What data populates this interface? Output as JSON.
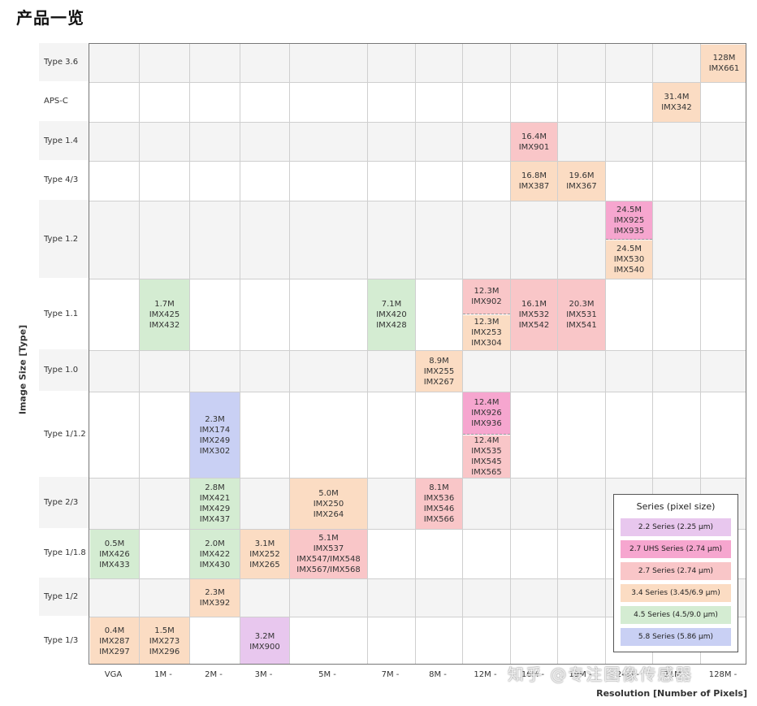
{
  "page_title": "产品一览",
  "y_axis_title": "Image Size [Type]",
  "x_axis_title": "Resolution [Number of Pixels]",
  "watermark": "知乎 @专注图像传感器",
  "colors": {
    "2.2": "#e8c7ee",
    "2.7UHS": "#f6a6cf",
    "2.7": "#f9c6c8",
    "3.4": "#fbdcc3",
    "4.5": "#d4ecd2",
    "5.8": "#c9d0f4",
    "band": "#f4f4f4",
    "grid": "#cfcfcf"
  },
  "rows": [
    {
      "label": "Type 3.6"
    },
    {
      "label": "APS-C"
    },
    {
      "label": "Type 1.4"
    },
    {
      "label": "Type 4/3"
    },
    {
      "label": "Type 1.2"
    },
    {
      "label": "Type 1.1"
    },
    {
      "label": "Type 1.0"
    },
    {
      "label": "Type 1/1.2"
    },
    {
      "label": "Type 2/3"
    },
    {
      "label": "Type 1/1.8"
    },
    {
      "label": "Type 1/2"
    },
    {
      "label": "Type 1/3"
    }
  ],
  "columns": [
    "VGA",
    "1M -",
    "2M -",
    "3M -",
    "5M -",
    "7M -",
    "8M -",
    "12M -",
    "16M -",
    "19M -",
    "24M -",
    "31M -",
    "128M -"
  ],
  "cells": [
    {
      "row": 0,
      "col": 12,
      "series": "3.4",
      "lines": [
        "128M",
        "IMX661"
      ]
    },
    {
      "row": 1,
      "col": 11,
      "series": "3.4",
      "lines": [
        "31.4M",
        "IMX342"
      ]
    },
    {
      "row": 2,
      "col": 8,
      "series": "2.7",
      "lines": [
        "16.4M",
        "IMX901"
      ]
    },
    {
      "row": 3,
      "col": 8,
      "series": "3.4",
      "lines": [
        "16.8M",
        "IMX387"
      ]
    },
    {
      "row": 3,
      "col": 9,
      "series": "3.4",
      "lines": [
        "19.6M",
        "IMX367"
      ]
    },
    {
      "row": 4,
      "col": 10,
      "series": "2.7UHS",
      "part": "top",
      "lines": [
        "24.5M",
        "IMX925",
        "IMX935"
      ]
    },
    {
      "row": 4,
      "col": 10,
      "series": "3.4",
      "part": "bottom",
      "lines": [
        "24.5M",
        "IMX530",
        "IMX540"
      ]
    },
    {
      "row": 5,
      "col": 1,
      "series": "4.5",
      "lines": [
        "1.7M",
        "IMX425",
        "IMX432"
      ]
    },
    {
      "row": 5,
      "col": 5,
      "series": "4.5",
      "lines": [
        "7.1M",
        "IMX420",
        "IMX428"
      ]
    },
    {
      "row": 5,
      "col": 7,
      "series": "2.7",
      "part": "top",
      "lines": [
        "12.3M",
        "IMX902"
      ]
    },
    {
      "row": 5,
      "col": 7,
      "series": "3.4",
      "part": "bottom",
      "lines": [
        "12.3M",
        "IMX253",
        "IMX304"
      ]
    },
    {
      "row": 5,
      "col": 8,
      "series": "2.7",
      "lines": [
        "16.1M",
        "IMX532",
        "IMX542"
      ]
    },
    {
      "row": 5,
      "col": 9,
      "series": "2.7",
      "lines": [
        "20.3M",
        "IMX531",
        "IMX541"
      ]
    },
    {
      "row": 6,
      "col": 6,
      "series": "3.4",
      "lines": [
        "8.9M",
        "IMX255",
        "IMX267"
      ]
    },
    {
      "row": 7,
      "col": 2,
      "series": "5.8",
      "lines": [
        "2.3M",
        "IMX174",
        "IMX249",
        "IMX302"
      ]
    },
    {
      "row": 7,
      "col": 7,
      "series": "2.7UHS",
      "part": "top",
      "lines": [
        "12.4M",
        "IMX926",
        "IMX936"
      ]
    },
    {
      "row": 7,
      "col": 7,
      "series": "2.7",
      "part": "bottom",
      "lines": [
        "12.4M",
        "IMX535",
        "IMX545",
        "IMX565"
      ]
    },
    {
      "row": 8,
      "col": 2,
      "series": "4.5",
      "lines": [
        "2.8M",
        "IMX421",
        "IMX429",
        "IMX437"
      ]
    },
    {
      "row": 8,
      "col": 4,
      "series": "3.4",
      "lines": [
        "5.0M",
        "IMX250",
        "IMX264"
      ]
    },
    {
      "row": 8,
      "col": 6,
      "series": "2.7",
      "lines": [
        "8.1M",
        "IMX536",
        "IMX546",
        "IMX566"
      ]
    },
    {
      "row": 9,
      "col": 0,
      "series": "4.5",
      "lines": [
        "0.5M",
        "IMX426",
        "IMX433"
      ]
    },
    {
      "row": 9,
      "col": 2,
      "series": "4.5",
      "lines": [
        "2.0M",
        "IMX422",
        "IMX430"
      ]
    },
    {
      "row": 9,
      "col": 3,
      "series": "3.4",
      "lines": [
        "3.1M",
        "IMX252",
        "IMX265"
      ]
    },
    {
      "row": 9,
      "col": 4,
      "series": "2.7",
      "lines": [
        "5.1M",
        "IMX537",
        "IMX547/IMX548",
        "IMX567/IMX568"
      ]
    },
    {
      "row": 10,
      "col": 2,
      "series": "3.4",
      "lines": [
        "2.3M",
        "IMX392"
      ]
    },
    {
      "row": 11,
      "col": 0,
      "series": "3.4",
      "lines": [
        "0.4M",
        "IMX287",
        "IMX297"
      ]
    },
    {
      "row": 11,
      "col": 1,
      "series": "3.4",
      "lines": [
        "1.5M",
        "IMX273",
        "IMX296"
      ]
    },
    {
      "row": 11,
      "col": 3,
      "series": "2.2",
      "lines": [
        "3.2M",
        "IMX900"
      ]
    }
  ],
  "legend": {
    "title": "Series (pixel size)",
    "items": [
      {
        "series": "2.2",
        "label": "2.2 Series (2.25 µm)"
      },
      {
        "series": "2.7UHS",
        "label": "2.7 UHS Series  (2.74 µm)"
      },
      {
        "series": "2.7",
        "label": "2.7 Series (2.74 µm)"
      },
      {
        "series": "3.4",
        "label": "3.4 Series (3.45/6.9 µm)"
      },
      {
        "series": "4.5",
        "label": "4.5 Series (4.5/9.0 µm)"
      },
      {
        "series": "5.8",
        "label": "5.8 Series (5.86 µm)"
      }
    ]
  }
}
